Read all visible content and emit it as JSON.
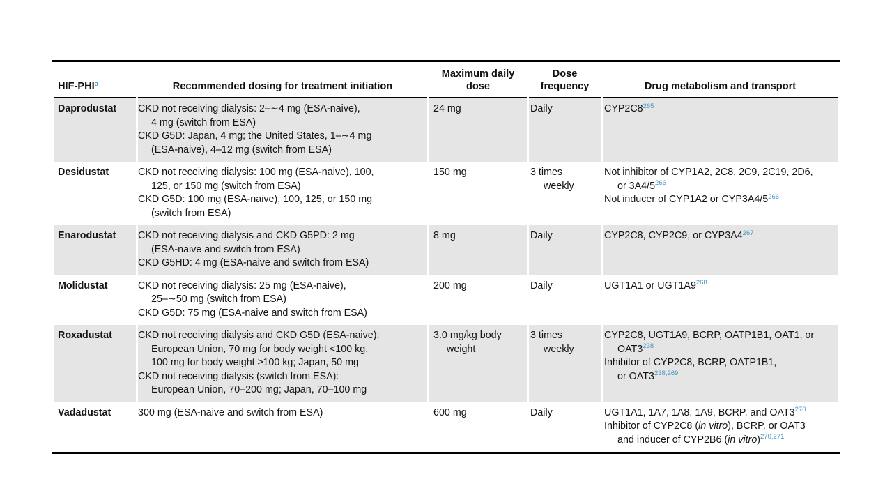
{
  "page": {
    "background": "#ffffff"
  },
  "table": {
    "headers": {
      "hif_phi": {
        "label": "HIF-PHI",
        "footnote_marker": "a"
      },
      "dosing": "Recommended dosing for treatment initiation",
      "max_daily_dose": "Maximum daily dose",
      "dose_frequency": "Dose frequency",
      "metabolism": "Drug metabolism and transport"
    },
    "colors": {
      "reference_blue": "#4597c3",
      "row_shade": "#e5e5e5",
      "rule_black": "#000000"
    },
    "rows": [
      {
        "drug": "Daprodustat",
        "shaded": true,
        "dosing": [
          {
            "ind": 0,
            "runs": [
              [
                "CKD not receiving dialysis: 2–∼4 mg (ESA-naive),"
              ]
            ]
          },
          {
            "ind": 1,
            "runs": [
              [
                "4 mg (switch from ESA)"
              ]
            ]
          },
          {
            "ind": 0,
            "runs": [
              [
                "CKD G5D: Japan, 4 mg; the United States, 1–∼4 mg"
              ]
            ]
          },
          {
            "ind": 1,
            "runs": [
              [
                "(ESA-naive), 4–12 mg (switch from ESA)"
              ]
            ]
          }
        ],
        "max_daily_dose": [
          {
            "ind": 0,
            "runs": [
              [
                "24 mg"
              ]
            ]
          }
        ],
        "dose_frequency": [
          {
            "ind": 0,
            "runs": [
              [
                "Daily"
              ]
            ]
          }
        ],
        "metabolism": [
          {
            "ind": 0,
            "runs": [
              [
                "CYP2C8"
              ],
              [
                "265",
                "sup"
              ]
            ]
          }
        ]
      },
      {
        "drug": "Desidustat",
        "shaded": false,
        "dosing": [
          {
            "ind": 0,
            "runs": [
              [
                "CKD not receiving dialysis: 100 mg (ESA-naive), 100,"
              ]
            ]
          },
          {
            "ind": 1,
            "runs": [
              [
                "125, or 150 mg (switch from ESA)"
              ]
            ]
          },
          {
            "ind": 0,
            "runs": [
              [
                "CKD G5D: 100 mg (ESA-naive), 100, 125, or 150 mg"
              ]
            ]
          },
          {
            "ind": 1,
            "runs": [
              [
                "(switch from ESA)"
              ]
            ]
          }
        ],
        "max_daily_dose": [
          {
            "ind": 0,
            "runs": [
              [
                "150 mg"
              ]
            ]
          }
        ],
        "dose_frequency": [
          {
            "ind": 0,
            "runs": [
              [
                "3 times"
              ]
            ]
          },
          {
            "ind": 1,
            "runs": [
              [
                "weekly"
              ]
            ]
          }
        ],
        "metabolism": [
          {
            "ind": 0,
            "runs": [
              [
                "Not inhibitor of CYP1A2, 2C8, 2C9, 2C19, 2D6,"
              ]
            ]
          },
          {
            "ind": 1,
            "runs": [
              [
                "or 3A4/5"
              ],
              [
                "266",
                "sup"
              ]
            ]
          },
          {
            "ind": 0,
            "runs": [
              [
                "Not inducer of CYP1A2 or CYP3A4/5"
              ],
              [
                "266",
                "sup"
              ]
            ]
          }
        ]
      },
      {
        "drug": "Enarodustat",
        "shaded": true,
        "dosing": [
          {
            "ind": 0,
            "runs": [
              [
                "CKD not receiving dialysis and CKD G5PD: 2 mg"
              ]
            ]
          },
          {
            "ind": 1,
            "runs": [
              [
                "(ESA-naive and switch from ESA)"
              ]
            ]
          },
          {
            "ind": 0,
            "runs": [
              [
                "CKD G5HD: 4 mg (ESA-naive and switch from ESA)"
              ]
            ]
          }
        ],
        "max_daily_dose": [
          {
            "ind": 0,
            "runs": [
              [
                "8 mg"
              ]
            ]
          }
        ],
        "dose_frequency": [
          {
            "ind": 0,
            "runs": [
              [
                "Daily"
              ]
            ]
          }
        ],
        "metabolism": [
          {
            "ind": 0,
            "runs": [
              [
                "CYP2C8, CYP2C9, or CYP3A4"
              ],
              [
                "267",
                "sup"
              ]
            ]
          }
        ]
      },
      {
        "drug": "Molidustat",
        "shaded": false,
        "dosing": [
          {
            "ind": 0,
            "runs": [
              [
                "CKD not receiving dialysis: 25 mg (ESA-naive),"
              ]
            ]
          },
          {
            "ind": 1,
            "runs": [
              [
                "25–∼50 mg (switch from ESA)"
              ]
            ]
          },
          {
            "ind": 0,
            "runs": [
              [
                "CKD G5D: 75 mg (ESA-naive and switch from ESA)"
              ]
            ]
          }
        ],
        "max_daily_dose": [
          {
            "ind": 0,
            "runs": [
              [
                "200 mg"
              ]
            ]
          }
        ],
        "dose_frequency": [
          {
            "ind": 0,
            "runs": [
              [
                "Daily"
              ]
            ]
          }
        ],
        "metabolism": [
          {
            "ind": 0,
            "runs": [
              [
                "UGT1A1 or UGT1A9"
              ],
              [
                "268",
                "sup"
              ]
            ]
          }
        ]
      },
      {
        "drug": "Roxadustat",
        "shaded": true,
        "dosing": [
          {
            "ind": 0,
            "runs": [
              [
                "CKD not receiving dialysis and CKD G5D (ESA-naive):"
              ]
            ]
          },
          {
            "ind": 1,
            "runs": [
              [
                "European Union, 70 mg for body weight <100 kg,"
              ]
            ]
          },
          {
            "ind": 1,
            "runs": [
              [
                "100 mg for body weight ≥100 kg; Japan, 50 mg"
              ]
            ]
          },
          {
            "ind": 0,
            "runs": [
              [
                "CKD not receiving dialysis (switch from ESA):"
              ]
            ]
          },
          {
            "ind": 1,
            "runs": [
              [
                "European Union, 70–200 mg; Japan, 70–100 mg"
              ]
            ]
          }
        ],
        "max_daily_dose": [
          {
            "ind": 0,
            "runs": [
              [
                "3.0 mg/kg body"
              ]
            ]
          },
          {
            "ind": 1,
            "runs": [
              [
                "weight"
              ]
            ]
          }
        ],
        "dose_frequency": [
          {
            "ind": 0,
            "runs": [
              [
                "3 times"
              ]
            ]
          },
          {
            "ind": 1,
            "runs": [
              [
                "weekly"
              ]
            ]
          }
        ],
        "metabolism": [
          {
            "ind": 0,
            "runs": [
              [
                "CYP2C8, UGT1A9, BCRP, OATP1B1, OAT1, or"
              ]
            ]
          },
          {
            "ind": 1,
            "runs": [
              [
                "OAT3"
              ],
              [
                "238",
                "sup"
              ]
            ]
          },
          {
            "ind": 0,
            "runs": [
              [
                "Inhibitor of CYP2C8, BCRP, OATP1B1,"
              ]
            ]
          },
          {
            "ind": 1,
            "runs": [
              [
                "or OAT3"
              ],
              [
                "238,269",
                "sup"
              ]
            ]
          }
        ]
      },
      {
        "drug": "Vadadustat",
        "shaded": false,
        "dosing": [
          {
            "ind": 0,
            "runs": [
              [
                "300 mg (ESA-naive and switch from ESA)"
              ]
            ]
          }
        ],
        "max_daily_dose": [
          {
            "ind": 0,
            "runs": [
              [
                "600 mg"
              ]
            ]
          }
        ],
        "dose_frequency": [
          {
            "ind": 0,
            "runs": [
              [
                "Daily"
              ]
            ]
          }
        ],
        "metabolism": [
          {
            "ind": 0,
            "runs": [
              [
                "UGT1A1, 1A7, 1A8, 1A9, BCRP, and OAT3"
              ],
              [
                "270",
                "sup"
              ]
            ]
          },
          {
            "ind": 0,
            "runs": [
              [
                "Inhibitor of CYP2C8 ("
              ],
              [
                "in vitro",
                "i"
              ],
              [
                "), BCRP, or OAT3"
              ]
            ]
          },
          {
            "ind": 1,
            "runs": [
              [
                "and inducer of CYP2B6 ("
              ],
              [
                "in vitro",
                "i"
              ],
              [
                ")"
              ],
              [
                "270,271",
                "sup"
              ]
            ]
          }
        ]
      }
    ]
  }
}
